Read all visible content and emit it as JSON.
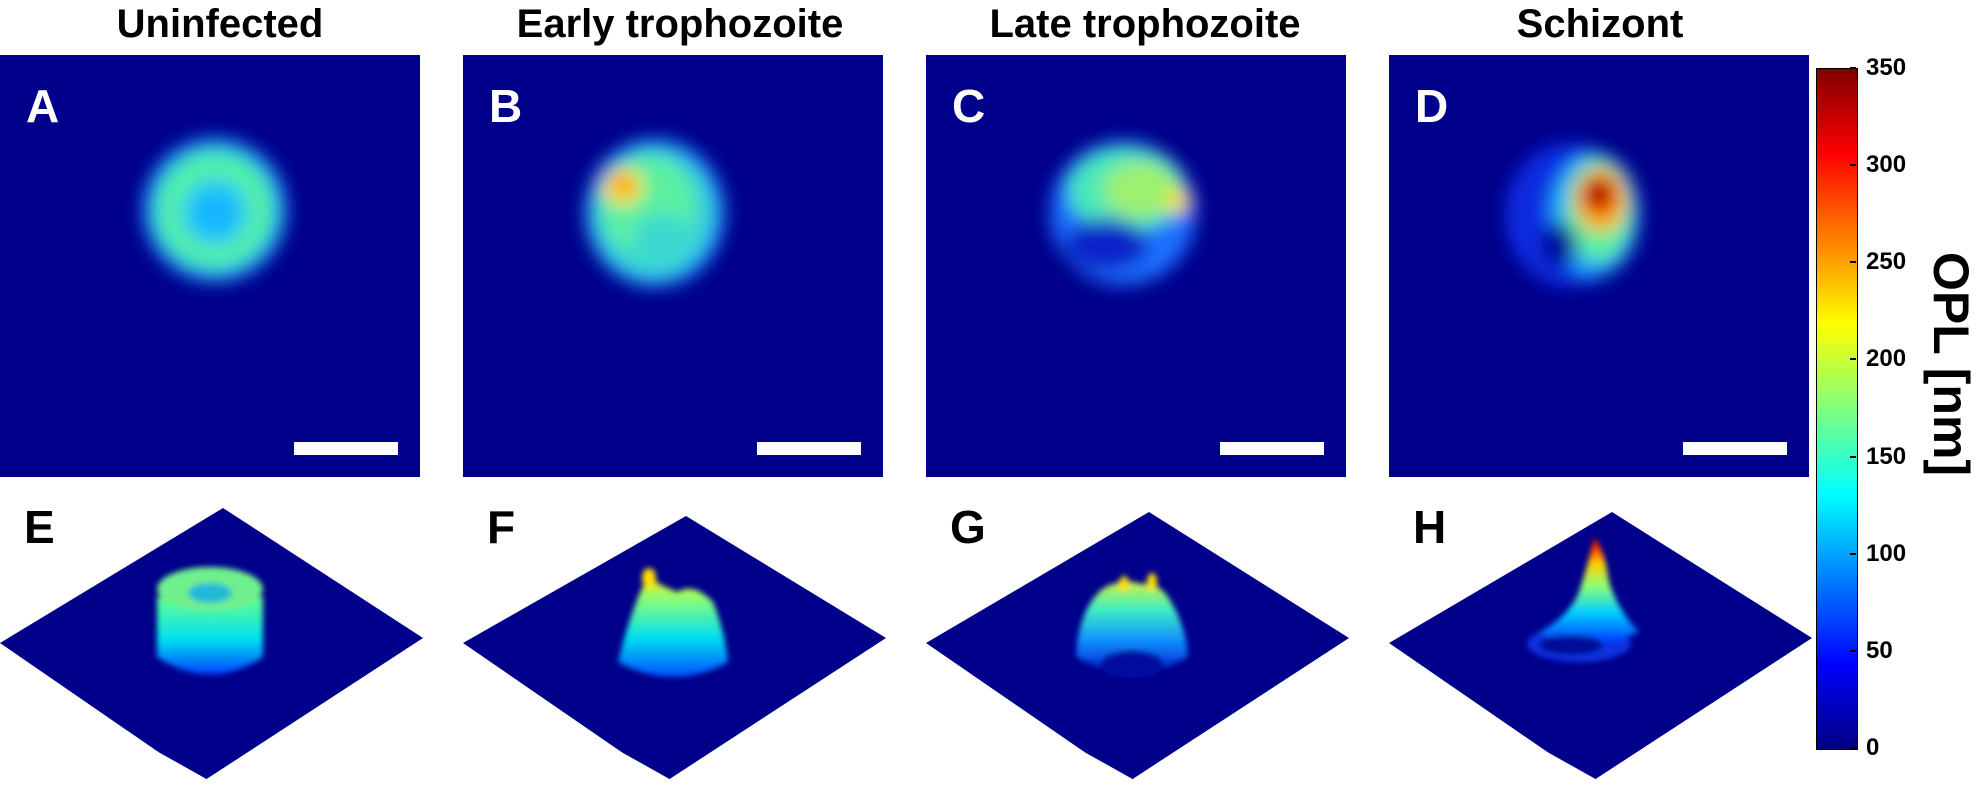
{
  "columns": [
    {
      "title": "Uninfected",
      "top_letter": "A",
      "bottom_letter": "E"
    },
    {
      "title": "Early trophozoite",
      "top_letter": "B",
      "bottom_letter": "F"
    },
    {
      "title": "Late trophozoite",
      "top_letter": "C",
      "bottom_letter": "G"
    },
    {
      "title": "Schizont",
      "top_letter": "D",
      "bottom_letter": "H"
    }
  ],
  "colorbar": {
    "label": "OPL [nm]",
    "ticks": [
      "0",
      "50",
      "100",
      "150",
      "200",
      "250",
      "300",
      "350"
    ],
    "min": 0,
    "max": 350,
    "colormap": "jet"
  }
}
